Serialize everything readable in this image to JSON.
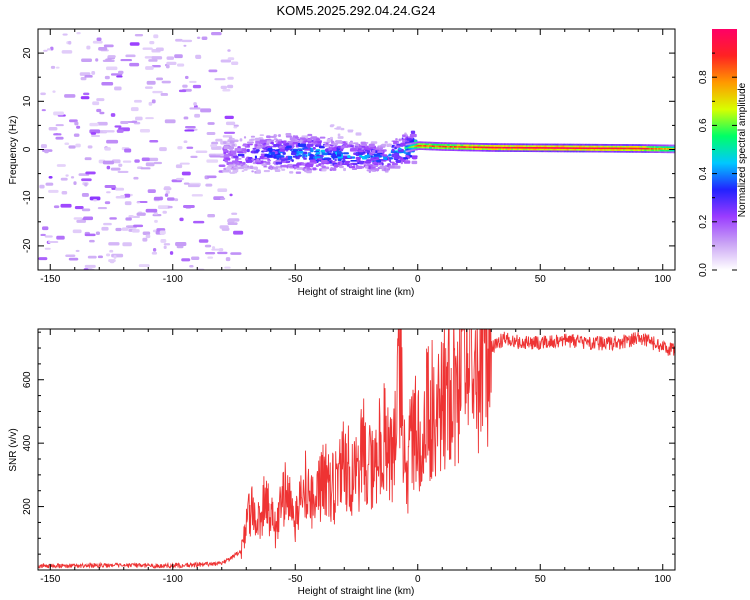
{
  "title": "KOM5.2025.292.04.24.G24",
  "chart_data": [
    {
      "type": "heatmap",
      "title": "",
      "xlabel": "Height of straight line (km)",
      "ylabel": "Frequency (Hz)",
      "xlim": [
        -155,
        105
      ],
      "ylim": [
        -25,
        25
      ],
      "xticks": [
        -150,
        -100,
        -50,
        0,
        50,
        100
      ],
      "yticks": [
        -20,
        -10,
        0,
        10,
        20
      ],
      "colorbar": {
        "label": "Normalized spectral amplitude",
        "range": [
          0,
          1
        ],
        "ticks": [
          0.0,
          0.2,
          0.4,
          0.6,
          0.8
        ],
        "colormap": [
          "#ffffff",
          "#c9a3f5",
          "#9a3cff",
          "#2222ff",
          "#00c8ff",
          "#00ff66",
          "#d8ff00",
          "#ff9900",
          "#ff2222",
          "#ff0066"
        ]
      },
      "ridge": [
        {
          "x": -75,
          "f": -1.0,
          "a": 0.25
        },
        {
          "x": -60,
          "f": -0.5,
          "a": 0.35
        },
        {
          "x": -45,
          "f": -0.5,
          "a": 0.45
        },
        {
          "x": -30,
          "f": -1.0,
          "a": 0.42
        },
        {
          "x": -15,
          "f": -1.5,
          "a": 0.38
        },
        {
          "x": -5,
          "f": 0.5,
          "a": 0.5
        },
        {
          "x": 0,
          "f": 1.0,
          "a": 0.85
        },
        {
          "x": 10,
          "f": 0.8,
          "a": 0.85
        },
        {
          "x": 30,
          "f": 0.6,
          "a": 0.95
        },
        {
          "x": 60,
          "f": 0.5,
          "a": 1.0
        },
        {
          "x": 90,
          "f": 0.4,
          "a": 0.95
        },
        {
          "x": 105,
          "f": 0.3,
          "a": 0.7
        }
      ]
    },
    {
      "type": "line",
      "title": "",
      "xlabel": "Height of straight line (km)",
      "ylabel": "SNR (v/v)",
      "xlim": [
        -155,
        105
      ],
      "ylim": [
        0,
        760
      ],
      "xticks": [
        -150,
        -100,
        -50,
        0,
        50,
        100
      ],
      "yticks": [
        200,
        400,
        600
      ],
      "color": "#ee3333",
      "series": [
        {
          "name": "SNR",
          "x": [
            -155,
            -130,
            -100,
            -80,
            -72,
            -68,
            -66,
            -62,
            -58,
            -54,
            -50,
            -46,
            -42,
            -38,
            -34,
            -30,
            -26,
            -22,
            -18,
            -14,
            -10,
            -7,
            -5,
            -2,
            0,
            4,
            8,
            12,
            16,
            20,
            25,
            30,
            35,
            40,
            50,
            60,
            70,
            80,
            90,
            95,
            100,
            105
          ],
          "y": [
            12,
            14,
            14,
            20,
            60,
            200,
            130,
            230,
            120,
            260,
            150,
            270,
            200,
            300,
            250,
            340,
            280,
            380,
            300,
            440,
            320,
            720,
            260,
            450,
            420,
            520,
            480,
            560,
            560,
            650,
            660,
            700,
            730,
            720,
            715,
            725,
            715,
            715,
            730,
            720,
            700,
            695
          ]
        }
      ]
    }
  ]
}
